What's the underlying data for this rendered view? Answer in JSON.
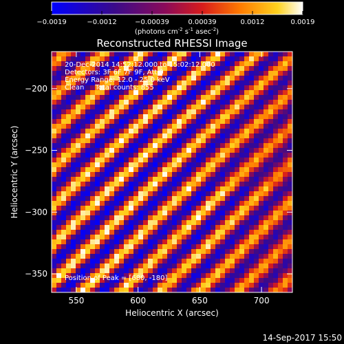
{
  "chart_data": {
    "type": "heatmap",
    "title": "Reconstructed RHESSI Image",
    "xlabel": "Heliocentric X (arcsec)",
    "ylabel": "Heliocentric Y (arcsec)",
    "xlim": [
      530,
      725
    ],
    "ylim": [
      -365,
      -170
    ],
    "x_ticks": [
      "550",
      "600",
      "650",
      "700"
    ],
    "y_ticks": [
      "-200",
      "-250",
      "-300",
      "-350"
    ],
    "colorbar": {
      "colormap": "blue-purple-red-orange-yellow-white",
      "range": [
        -0.0019,
        0.0019
      ],
      "tick_labels": [
        "-0.0019",
        "-0.0012",
        "-0.00039",
        "0.00039",
        "0.0012",
        "0.0019"
      ],
      "units_prefix": "(photons cm",
      "units_exp1": "-2",
      "units_mid": " s",
      "units_exp2": "-1",
      "units_mid2": " asec",
      "units_exp3": "-2",
      "units_suffix": ")"
    },
    "annotations": [
      "20-Dec-2014 14:52:12.000 to 15:02:12.000",
      "Detectors: 3F 6F 7F 9F, Att 0",
      "Energy Range: 12.0 - 25.0 keV",
      "Clean     Total counts: 855"
    ],
    "peak_label": "Position of Peak = [680, -180]",
    "grid": false,
    "pattern": "diagonal fringe stripes (upper-left to lower-right), brighter toward right"
  },
  "footer_timestamp": "14-Sep-2017 15:50"
}
